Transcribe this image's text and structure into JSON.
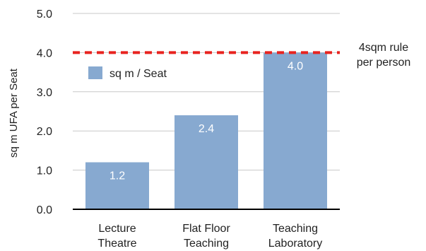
{
  "chart_data": {
    "type": "bar",
    "categories": [
      [
        "Lecture",
        "Theatre"
      ],
      [
        "Flat Floor",
        "Teaching"
      ],
      [
        "Teaching",
        "Laboratory"
      ]
    ],
    "series": [
      {
        "name": "sq m / Seat",
        "values": [
          1.2,
          2.4,
          4.0
        ],
        "data_labels": [
          "1.2",
          "2.4",
          "4.0"
        ]
      }
    ],
    "ylabel": "sq m UFA per Seat",
    "ylim": [
      0,
      5
    ],
    "yticks": [
      0,
      1,
      2,
      3,
      4,
      5
    ],
    "ytick_labels": [
      "0.0",
      "1.0",
      "2.0",
      "3.0",
      "4.0",
      "5.0"
    ],
    "grid": true,
    "legend": "top-left",
    "reference_line": {
      "value": 4.0,
      "label": [
        "4sqm rule",
        "per person"
      ],
      "color": "#e8231f",
      "style": "dashed"
    },
    "colors": {
      "bar": "#87a9d0",
      "gridline": "#c8c8c8",
      "axis": "#000000"
    }
  }
}
